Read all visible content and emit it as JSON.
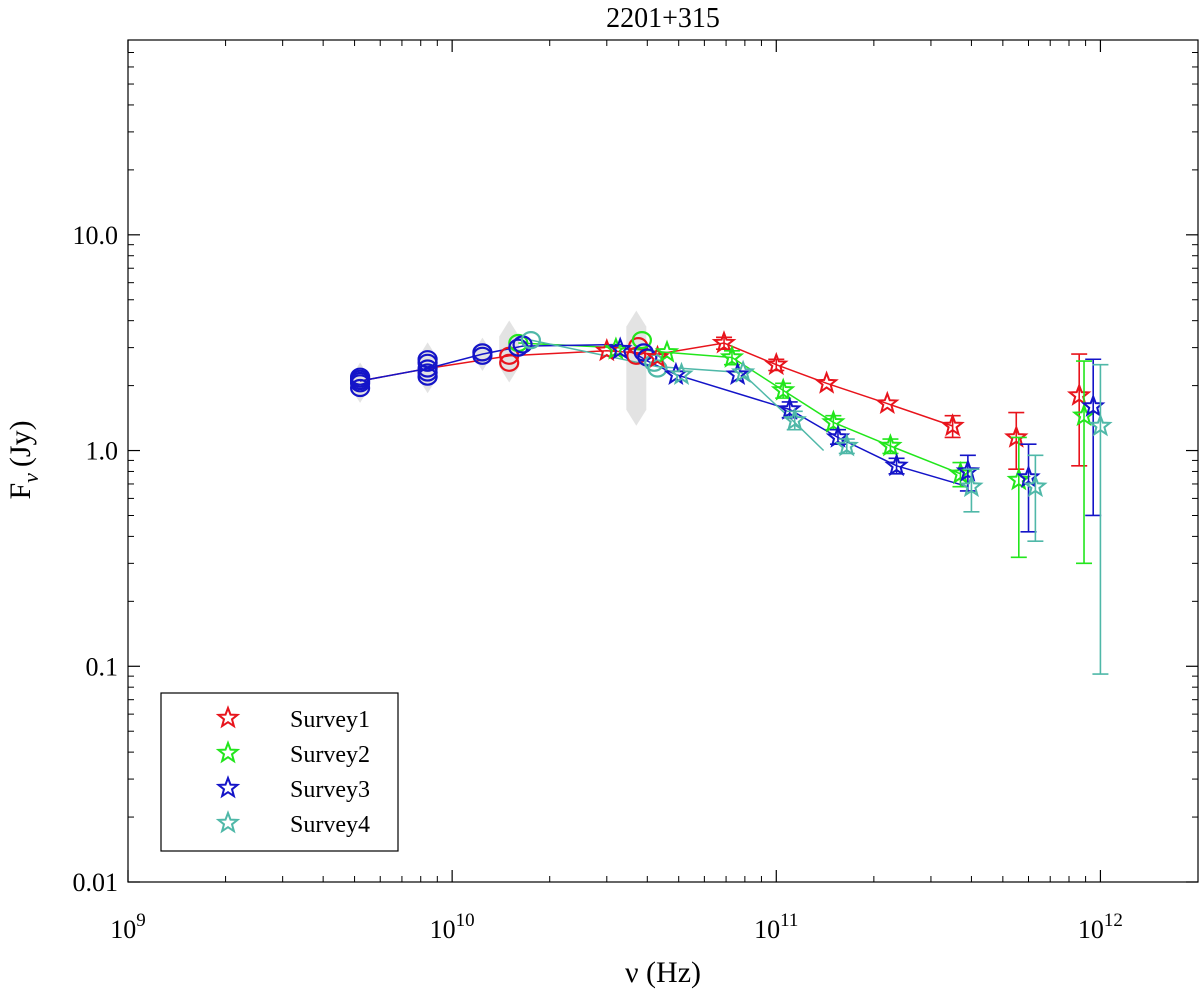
{
  "chart_data": {
    "type": "scatter",
    "title": "2201+315",
    "xlabel": "ν (Hz)",
    "ylabel_main": "F",
    "ylabel_sub": "ν",
    "ylabel_unit": "(Jy)",
    "xscale": "log",
    "yscale": "log",
    "xlim": [
      1000000000.0,
      2000000000000.0
    ],
    "ylim": [
      0.01,
      80
    ],
    "x_ticks": [
      {
        "value": 1000000000.0,
        "base": "10",
        "exp": "9"
      },
      {
        "value": 10000000000.0,
        "base": "10",
        "exp": "10"
      },
      {
        "value": 100000000000.0,
        "base": "10",
        "exp": "11"
      },
      {
        "value": 1000000000000.0,
        "base": "10",
        "exp": "12"
      }
    ],
    "y_ticks": [
      {
        "value": 0.01,
        "label": "0.01"
      },
      {
        "value": 0.1,
        "label": "0.1"
      },
      {
        "value": 1,
        "label": "1.0"
      },
      {
        "value": 10,
        "label": "10.0"
      }
    ],
    "grid": false,
    "legend_position": "bottom-left",
    "colors": {
      "Survey1": "#e8141c",
      "Survey2": "#22e61c",
      "Survey3": "#1414c8",
      "Survey4": "#4fb8a8",
      "range": "#e0e0e0"
    },
    "ranges": [
      {
        "x": 5200000000.0,
        "ymin": 1.85,
        "ymax": 2.3
      },
      {
        "x": 8400000000.0,
        "ymin": 2.05,
        "ymax": 2.85
      },
      {
        "x": 12400000000.0,
        "ymin": 2.6,
        "ymax": 3.0
      },
      {
        "x": 15000000000.0,
        "ymin": 2.3,
        "ymax": 3.6
      },
      {
        "x": 37000000000.0,
        "ymin": 1.45,
        "ymax": 4.0
      }
    ],
    "circles": [
      {
        "color": "Survey3",
        "points": [
          [
            5200000000.0,
            1.95
          ],
          [
            5200000000.0,
            2.05
          ],
          [
            5200000000.0,
            2.1
          ],
          [
            5200000000.0,
            2.15
          ],
          [
            5200000000.0,
            2.2
          ]
        ]
      },
      {
        "color": "Survey3",
        "points": [
          [
            8400000000.0,
            2.2
          ],
          [
            8400000000.0,
            2.3
          ],
          [
            8400000000.0,
            2.4
          ],
          [
            8400000000.0,
            2.55
          ],
          [
            8400000000.0,
            2.65
          ]
        ]
      },
      {
        "color": "Survey3",
        "points": [
          [
            12400000000.0,
            2.75
          ],
          [
            12400000000.0,
            2.85
          ]
        ]
      },
      {
        "color": "Survey1",
        "points": [
          [
            15000000000.0,
            2.55
          ],
          [
            15000000000.0,
            2.75
          ]
        ]
      },
      {
        "color": "Survey2",
        "points": [
          [
            16000000000.0,
            3.15
          ]
        ]
      },
      {
        "color": "Survey3",
        "points": [
          [
            16000000000.0,
            3.0
          ],
          [
            16500000000.0,
            3.1
          ]
        ]
      },
      {
        "color": "Survey4",
        "points": [
          [
            17500000000.0,
            3.25
          ]
        ]
      },
      {
        "color": "Survey1",
        "points": [
          [
            37000000000.0,
            2.75
          ],
          [
            37500000000.0,
            3.05
          ]
        ]
      },
      {
        "color": "Survey2",
        "points": [
          [
            38500000000.0,
            3.25
          ]
        ]
      },
      {
        "color": "Survey3",
        "points": [
          [
            39000000000.0,
            2.85
          ],
          [
            40000000000.0,
            2.7
          ]
        ]
      },
      {
        "color": "Survey4",
        "points": [
          [
            42000000000.0,
            2.55
          ],
          [
            43000000000.0,
            2.4
          ]
        ]
      }
    ],
    "series": [
      {
        "name": "Survey1",
        "line": [
          [
            5200000000.0,
            2.1
          ],
          [
            8400000000.0,
            2.4
          ],
          [
            15000000000.0,
            2.75
          ],
          [
            30000000000.0,
            2.9
          ],
          [
            43000000000.0,
            2.8
          ],
          [
            69000000000.0,
            3.15
          ],
          [
            100000000000.0,
            2.5
          ],
          [
            143000000000.0,
            2.05
          ],
          [
            220000000000.0,
            1.65
          ],
          [
            350000000000.0,
            1.3
          ]
        ],
        "stars": [
          {
            "x": 30000000000.0,
            "y": 2.9
          },
          {
            "x": 43000000000.0,
            "y": 2.7
          },
          {
            "x": 69000000000.0,
            "y": 3.15,
            "elo": 2.95,
            "ehi": 3.35
          },
          {
            "x": 100000000000.0,
            "y": 2.5,
            "elo": 2.35,
            "ehi": 2.65
          },
          {
            "x": 143000000000.0,
            "y": 2.05
          },
          {
            "x": 220000000000.0,
            "y": 1.65
          },
          {
            "x": 350000000000.0,
            "y": 1.3,
            "elo": 1.15,
            "ehi": 1.45
          },
          {
            "x": 550000000000.0,
            "y": 1.15,
            "elo": 0.82,
            "ehi": 1.5
          },
          {
            "x": 860000000000.0,
            "y": 1.8,
            "elo": 0.85,
            "ehi": 2.8
          }
        ]
      },
      {
        "name": "Survey2",
        "line": [
          [
            16000000000.0,
            3.15
          ],
          [
            32000000000.0,
            3.0
          ],
          [
            46000000000.0,
            2.85
          ],
          [
            73000000000.0,
            2.7
          ],
          [
            105000000000.0,
            1.9
          ],
          [
            150000000000.0,
            1.35
          ],
          [
            225000000000.0,
            1.05
          ],
          [
            370000000000.0,
            0.78
          ]
        ],
        "stars": [
          {
            "x": 32000000000.0,
            "y": 2.95
          },
          {
            "x": 46000000000.0,
            "y": 2.85
          },
          {
            "x": 73000000000.0,
            "y": 2.7,
            "elo": 2.5,
            "ehi": 2.9
          },
          {
            "x": 105000000000.0,
            "y": 1.9,
            "elo": 1.75,
            "ehi": 2.05
          },
          {
            "x": 150000000000.0,
            "y": 1.35,
            "elo": 1.25,
            "ehi": 1.45
          },
          {
            "x": 225000000000.0,
            "y": 1.05,
            "elo": 0.97,
            "ehi": 1.13
          },
          {
            "x": 370000000000.0,
            "y": 0.78,
            "elo": 0.68,
            "ehi": 0.88
          },
          {
            "x": 560000000000.0,
            "y": 0.73,
            "elo": 0.32,
            "ehi": 1.15
          },
          {
            "x": 890000000000.0,
            "y": 1.45,
            "elo": 0.3,
            "ehi": 2.6
          }
        ]
      },
      {
        "name": "Survey3",
        "line": [
          [
            5200000000.0,
            2.1
          ],
          [
            8400000000.0,
            2.4
          ],
          [
            12400000000.0,
            2.8
          ],
          [
            16500000000.0,
            3.05
          ],
          [
            33000000000.0,
            3.1
          ],
          [
            40000000000.0,
            2.6
          ],
          [
            49000000000.0,
            2.25
          ],
          [
            110000000000.0,
            1.55
          ],
          [
            155000000000.0,
            1.15
          ],
          [
            235000000000.0,
            0.85
          ],
          [
            390000000000.0,
            0.68
          ]
        ],
        "stars": [
          {
            "x": 33000000000.0,
            "y": 2.95
          },
          {
            "x": 49000000000.0,
            "y": 2.25
          },
          {
            "x": 76000000000.0,
            "y": 2.25
          },
          {
            "x": 110000000000.0,
            "y": 1.55,
            "elo": 1.42,
            "ehi": 1.68
          },
          {
            "x": 155000000000.0,
            "y": 1.15,
            "elo": 1.07,
            "ehi": 1.25
          },
          {
            "x": 235000000000.0,
            "y": 0.85,
            "elo": 0.78,
            "ehi": 0.92
          },
          {
            "x": 390000000000.0,
            "y": 0.8,
            "elo": 0.65,
            "ehi": 0.95
          },
          {
            "x": 600000000000.0,
            "y": 0.75,
            "elo": 0.42,
            "ehi": 1.07
          },
          {
            "x": 950000000000.0,
            "y": 1.6,
            "elo": 0.5,
            "ehi": 2.65
          }
        ]
      },
      {
        "name": "Survey4",
        "line": [
          [
            17500000000.0,
            3.25
          ],
          [
            43000000000.0,
            2.45
          ],
          [
            78000000000.0,
            2.3
          ],
          [
            114000000000.0,
            1.35
          ],
          [
            140000000000.0,
            1.0
          ]
        ],
        "stars": [
          {
            "x": 51000000000.0,
            "y": 2.25
          },
          {
            "x": 79000000000.0,
            "y": 2.3
          },
          {
            "x": 114000000000.0,
            "y": 1.38,
            "elo": 1.25,
            "ehi": 1.52
          },
          {
            "x": 165000000000.0,
            "y": 1.05,
            "elo": 0.97,
            "ehi": 1.13
          },
          {
            "x": 400000000000.0,
            "y": 0.68,
            "elo": 0.52,
            "ehi": 0.82
          },
          {
            "x": 630000000000.0,
            "y": 0.68,
            "elo": 0.38,
            "ehi": 0.95
          },
          {
            "x": 1000000000000.0,
            "y": 1.3,
            "elo": 0.092,
            "ehi": 2.5
          }
        ]
      }
    ]
  }
}
